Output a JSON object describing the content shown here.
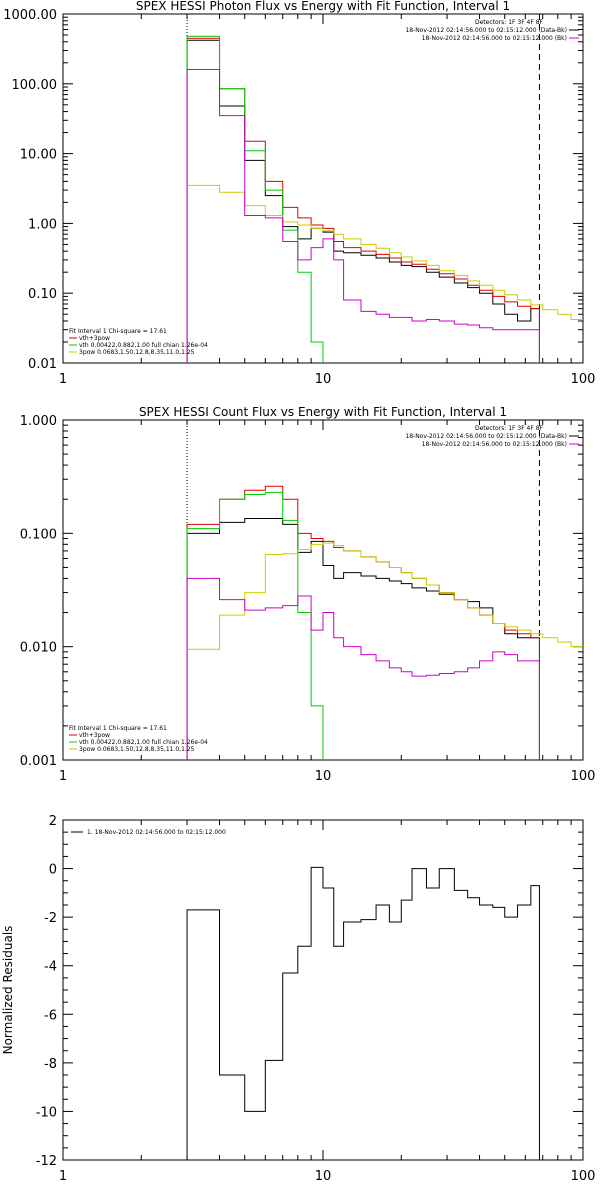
{
  "chart_data": [
    {
      "type": "line",
      "title": "SPEX HESSI Photon Flux vs Energy with Fit Function, Interval 1",
      "xscale": "log",
      "yscale": "log",
      "xlim": [
        1,
        100
      ],
      "ylim": [
        0.01,
        1000
      ],
      "xticks": [
        "1",
        "10",
        "100"
      ],
      "yticks": [
        "0.01",
        "0.10",
        "1.00",
        "10.00",
        "100.00",
        "1000.00"
      ],
      "ytick_values": [
        0.01,
        0.1,
        1,
        10,
        100,
        1000
      ],
      "vlines": [
        {
          "x": 3.0,
          "style": "dotted"
        },
        {
          "x": 68.0,
          "style": "dashed"
        }
      ],
      "legend_top": {
        "placement": "top-right",
        "header": "Detectors: 1F 3F 4F 8F",
        "lines": [
          {
            "text": "18-Nov-2012 02:14:56.000 to 02:15:12.000 (Data-Bk)",
            "color": "#000000"
          },
          {
            "text": "18-Nov-2012 02:14:56.000 to 02:15:12.000 (Bk)",
            "color": "#cc00cc"
          }
        ]
      },
      "legend_bottom": {
        "placement": "bottom-left",
        "header": "Fit Interval 1    Chi-square = 17.61",
        "lines": [
          {
            "text": "vth+3pow",
            "color": "#dd0000"
          },
          {
            "text": "vth 0.00422,0.882,1.00  full chian 1.26e-04",
            "color": "#00cc00"
          },
          {
            "text": "3pow 0.0683,1.50,12.8,8.35,11.0,1.25",
            "color": "#cccc00"
          }
        ]
      },
      "series": [
        {
          "color": "#000000",
          "edges": [
            3,
            4,
            5,
            6,
            7,
            8,
            9,
            10,
            11,
            12,
            14,
            16,
            18,
            20,
            22,
            25,
            28,
            32,
            36,
            40,
            45,
            50,
            56,
            63,
            68
          ],
          "values": [
            420,
            48,
            8,
            2.5,
            0.9,
            0.6,
            0.85,
            0.75,
            0.4,
            0.38,
            0.35,
            0.32,
            0.28,
            0.25,
            0.24,
            0.2,
            0.17,
            0.14,
            0.12,
            0.1,
            0.07,
            0.05,
            0.04,
            0.06
          ]
        },
        {
          "color": "#dd0000",
          "edges": [
            3,
            4,
            5,
            6,
            7,
            8,
            9,
            10,
            11,
            12,
            14,
            16,
            18,
            20,
            22,
            25,
            28,
            32,
            36,
            40,
            45,
            50,
            56,
            63,
            68
          ],
          "values": [
            450,
            85,
            15,
            4,
            1.7,
            1.2,
            0.95,
            0.85,
            0.55,
            0.45,
            0.4,
            0.36,
            0.32,
            0.28,
            0.26,
            0.22,
            0.19,
            0.16,
            0.13,
            0.11,
            0.09,
            0.075,
            0.065,
            0.06
          ]
        },
        {
          "color": "#00cc00",
          "edges": [
            3,
            4,
            5,
            6,
            7,
            8,
            9,
            10
          ],
          "values": [
            480,
            85,
            11,
            3,
            0.8,
            0.2,
            0.02
          ]
        },
        {
          "color": "#cccc00",
          "edges": [
            3,
            4,
            5,
            6,
            7,
            8,
            9,
            10,
            11,
            12,
            14,
            16,
            18,
            20,
            22,
            25,
            28,
            32,
            36,
            40,
            45,
            50,
            56,
            63,
            70,
            80,
            90,
            100
          ],
          "values": [
            3.5,
            2.8,
            1.8,
            1.3,
            1.05,
            0.95,
            0.85,
            0.78,
            0.7,
            0.6,
            0.5,
            0.44,
            0.38,
            0.33,
            0.29,
            0.25,
            0.21,
            0.18,
            0.15,
            0.13,
            0.11,
            0.095,
            0.08,
            0.068,
            0.058,
            0.05,
            0.042
          ]
        },
        {
          "color": "#cc00cc",
          "edges": [
            3,
            4,
            5,
            6,
            7,
            8,
            9,
            10,
            11,
            12,
            14,
            16,
            18,
            20,
            22,
            25,
            28,
            32,
            36,
            40,
            45,
            50,
            56,
            63,
            68
          ],
          "values": [
            160,
            35,
            1.3,
            1.2,
            0.55,
            0.3,
            0.45,
            0.6,
            0.3,
            0.08,
            0.055,
            0.05,
            0.045,
            0.045,
            0.04,
            0.042,
            0.04,
            0.036,
            0.035,
            0.032,
            0.03,
            0.03,
            0.03,
            0.03
          ]
        }
      ]
    },
    {
      "type": "line",
      "title": "SPEX HESSI Count Flux vs Energy with Fit Function, Interval 1",
      "xscale": "log",
      "yscale": "log",
      "xlim": [
        1,
        100
      ],
      "ylim": [
        0.001,
        1
      ],
      "xticks": [
        "1",
        "10",
        "100"
      ],
      "yticks": [
        "0.001",
        "0.010",
        "0.100",
        "1.000"
      ],
      "ytick_values": [
        0.001,
        0.01,
        0.1,
        1
      ],
      "vlines": [
        {
          "x": 3.0,
          "style": "dotted"
        },
        {
          "x": 68.0,
          "style": "dashed"
        }
      ],
      "legend_top": {
        "placement": "top-right",
        "header": "Detectors: 1F 3F 4F 8F",
        "lines": [
          {
            "text": "18-Nov-2012 02:14:56.000 to 02:15:12.000 (Data-Bk)",
            "color": "#000000"
          },
          {
            "text": "18-Nov-2012 02:14:56.000 to 02:15:12.000 (Bk)",
            "color": "#cc00cc"
          }
        ]
      },
      "legend_bottom": {
        "placement": "bottom-left",
        "header": "Fit Interval 1    Chi-square = 17.61",
        "lines": [
          {
            "text": "vth+3pow",
            "color": "#dd0000"
          },
          {
            "text": "vth 0.00422,0.882,1.00  full chian 1.26e-04",
            "color": "#00cc00"
          },
          {
            "text": "3pow 0.0683,1.50,12.8,8.35,11.0,1.25",
            "color": "#cccc00"
          }
        ]
      },
      "series": [
        {
          "color": "#000000",
          "edges": [
            3,
            4,
            5,
            6,
            7,
            8,
            9,
            10,
            11,
            12,
            14,
            16,
            18,
            20,
            22,
            25,
            28,
            32,
            36,
            40,
            45,
            50,
            56,
            63,
            68
          ],
          "values": [
            0.1,
            0.125,
            0.135,
            0.135,
            0.12,
            0.068,
            0.085,
            0.052,
            0.04,
            0.045,
            0.042,
            0.04,
            0.038,
            0.036,
            0.033,
            0.031,
            0.029,
            0.026,
            0.025,
            0.022,
            0.016,
            0.013,
            0.012,
            0.012
          ]
        },
        {
          "color": "#dd0000",
          "edges": [
            3,
            4,
            5,
            6,
            7,
            8,
            9,
            10,
            11,
            12,
            14,
            16,
            18,
            20,
            22,
            25,
            28,
            32,
            36,
            40,
            45,
            50,
            56,
            63,
            68
          ],
          "values": [
            0.12,
            0.2,
            0.24,
            0.26,
            0.2,
            0.1,
            0.09,
            0.085,
            0.075,
            0.07,
            0.062,
            0.056,
            0.05,
            0.045,
            0.04,
            0.035,
            0.03,
            0.026,
            0.022,
            0.019,
            0.016,
            0.014,
            0.013,
            0.012
          ]
        },
        {
          "color": "#00cc00",
          "edges": [
            3,
            4,
            5,
            6,
            7,
            8,
            9,
            10
          ],
          "values": [
            0.11,
            0.2,
            0.22,
            0.23,
            0.13,
            0.02,
            0.003
          ]
        },
        {
          "color": "#cccc00",
          "edges": [
            3,
            4,
            5,
            6,
            7,
            8,
            9,
            10,
            11,
            12,
            14,
            16,
            18,
            20,
            22,
            25,
            28,
            32,
            36,
            40,
            45,
            50,
            56,
            63,
            70,
            80,
            90,
            100
          ],
          "values": [
            0.0095,
            0.019,
            0.03,
            0.065,
            0.066,
            0.072,
            0.08,
            0.082,
            0.078,
            0.07,
            0.062,
            0.056,
            0.05,
            0.045,
            0.04,
            0.035,
            0.03,
            0.026,
            0.022,
            0.019,
            0.016,
            0.015,
            0.014,
            0.013,
            0.012,
            0.011,
            0.01
          ]
        },
        {
          "color": "#cc00cc",
          "edges": [
            3,
            4,
            5,
            6,
            7,
            8,
            9,
            10,
            11,
            12,
            14,
            16,
            18,
            20,
            22,
            25,
            28,
            32,
            36,
            40,
            45,
            50,
            56,
            63,
            68
          ],
          "values": [
            0.04,
            0.026,
            0.021,
            0.022,
            0.023,
            0.028,
            0.014,
            0.02,
            0.012,
            0.01,
            0.0085,
            0.0075,
            0.0065,
            0.006,
            0.0055,
            0.0056,
            0.0058,
            0.006,
            0.0065,
            0.0075,
            0.009,
            0.0085,
            0.0075,
            0.0075
          ]
        }
      ]
    },
    {
      "type": "line",
      "title": "",
      "xscale": "log",
      "yscale": "linear",
      "xlim": [
        1,
        100
      ],
      "ylim": [
        -12,
        2
      ],
      "xticks": [
        "1",
        "10",
        "100"
      ],
      "yticks": [
        "-12",
        "-10",
        "-8",
        "-6",
        "-4",
        "-2",
        "0",
        "2"
      ],
      "ytick_values": [
        -12,
        -10,
        -8,
        -6,
        -4,
        -2,
        0,
        2
      ],
      "ylabel": "Normalized Residuals",
      "legend_top": {
        "placement": "top-left",
        "lines": [
          {
            "text": "1. 18-Nov-2012 02:14:56.000 to 02:15:12.000",
            "color": "#000000"
          }
        ]
      },
      "series": [
        {
          "color": "#000000",
          "edges": [
            3,
            4,
            5,
            6,
            7,
            8,
            9,
            10,
            11,
            12,
            14,
            16,
            18,
            20,
            22,
            25,
            28,
            32,
            36,
            40,
            45,
            50,
            56,
            63,
            68
          ],
          "values": [
            -1.7,
            -8.5,
            -10.0,
            -7.9,
            -4.3,
            -3.2,
            0.05,
            -0.8,
            -3.2,
            -2.2,
            -2.1,
            -1.5,
            -2.2,
            -1.3,
            0.0,
            -0.8,
            0.0,
            -0.9,
            -1.2,
            -1.5,
            -1.6,
            -2.0,
            -1.5,
            -0.7
          ]
        }
      ]
    }
  ]
}
